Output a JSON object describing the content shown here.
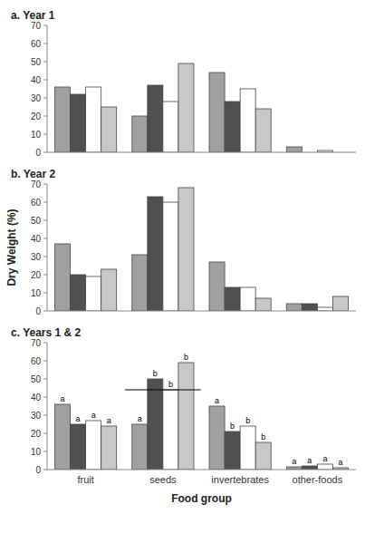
{
  "chart_data": [
    {
      "type": "bar",
      "title": "a.  Year 1",
      "categories": [
        null,
        null,
        null,
        null
      ],
      "tick_labels": "y",
      "series": [
        {
          "color": "#a0a0a0",
          "values": [
            36,
            20,
            44,
            3
          ]
        },
        {
          "color": "#505050",
          "values": [
            32,
            37,
            28,
            0
          ]
        },
        {
          "color": "#ffffff",
          "values": [
            36,
            28,
            35,
            1
          ]
        },
        {
          "color": "#c8c8c8",
          "values": [
            25,
            49,
            24,
            0
          ]
        }
      ],
      "ylim": [
        0,
        70
      ],
      "yticks": [
        0,
        10,
        20,
        30,
        40,
        50,
        60,
        70
      ]
    },
    {
      "type": "bar",
      "title": "b.  Year 2",
      "ylabel": "Dry Weight (%)",
      "categories": [
        null,
        null,
        null,
        null
      ],
      "tick_labels": "y",
      "series": [
        {
          "color": "#a0a0a0",
          "values": [
            37,
            31,
            27,
            4
          ]
        },
        {
          "color": "#505050",
          "values": [
            20,
            63,
            13,
            4
          ]
        },
        {
          "color": "#ffffff",
          "values": [
            19,
            60,
            13,
            2
          ]
        },
        {
          "color": "#c8c8c8",
          "values": [
            23,
            68,
            7,
            8
          ]
        }
      ],
      "ylim": [
        0,
        70
      ],
      "yticks": [
        0,
        10,
        20,
        30,
        40,
        50,
        60,
        70
      ]
    },
    {
      "type": "bar",
      "title": "c.  Years 1 & 2",
      "xlabel": "Food group",
      "categories": [
        "fruit",
        "seeds",
        "invertebrates",
        "other-foods"
      ],
      "series": [
        {
          "color": "#a0a0a0",
          "values": [
            36,
            25,
            35,
            1.5
          ],
          "annotations": [
            "a",
            "a",
            "a",
            "a"
          ]
        },
        {
          "color": "#505050",
          "values": [
            25,
            50,
            21,
            2
          ],
          "annotations": [
            "a",
            "b",
            "b",
            "a"
          ]
        },
        {
          "color": "#ffffff",
          "values": [
            27,
            44,
            24,
            3
          ],
          "annotations": [
            "a",
            "b",
            "b",
            "a"
          ]
        },
        {
          "color": "#c8c8c8",
          "values": [
            24,
            59,
            15,
            1
          ],
          "annotations": [
            "a",
            "b",
            "b",
            "a"
          ]
        }
      ],
      "reference_line": {
        "category": "seeds",
        "value": 44
      },
      "ylim": [
        0,
        70
      ],
      "yticks": [
        0,
        10,
        20,
        30,
        40,
        50,
        60,
        70
      ]
    }
  ]
}
